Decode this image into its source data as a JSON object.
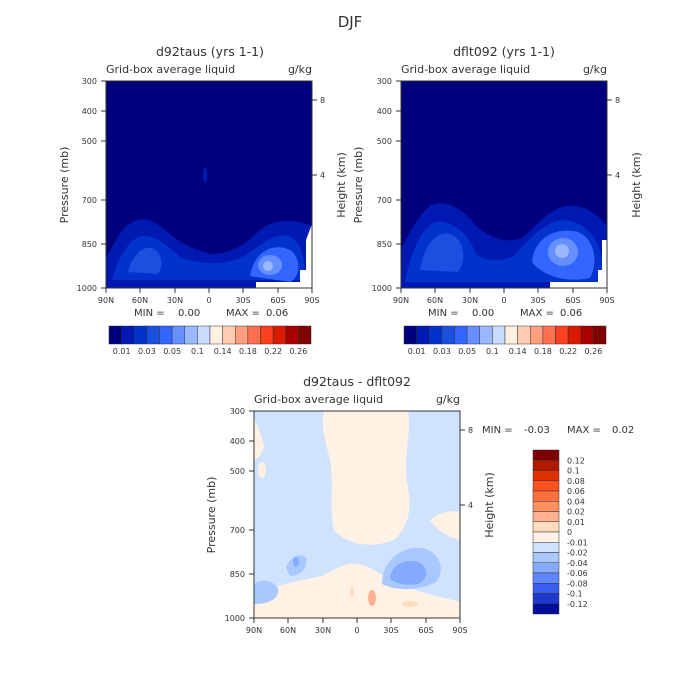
{
  "figure_title": "DJF",
  "chart_data": [
    {
      "type": "heatmap",
      "title": "d92taus (yrs 1-1)",
      "subtitle": "Grid-box average liquid",
      "units": "g/kg",
      "ylabel": "Pressure (mb)",
      "y2label": "Height (km)",
      "x_ticks": [
        "90N",
        "60N",
        "30N",
        "0",
        "30S",
        "60S",
        "90S"
      ],
      "y_ticks": [
        "300",
        "400",
        "500",
        "700",
        "850",
        "1000"
      ],
      "y2_ticks": [
        "8",
        "4"
      ],
      "stats": {
        "min_label": "MIN =",
        "min": "0.00",
        "max_label": "MAX =",
        "max": "0.06"
      },
      "colorbar": {
        "colors": [
          "#00007f",
          "#0019b2",
          "#0033cc",
          "#1a4fe0",
          "#3366ff",
          "#668fff",
          "#99b8ff",
          "#c7dcff",
          "#fff0e0",
          "#ffccb2",
          "#ff9f80",
          "#ff7050",
          "#ff4020",
          "#d91a00",
          "#a80000",
          "#7f0000"
        ],
        "labels": [
          "0.01",
          "0.03",
          "0.05",
          "0.1",
          "0.14",
          "0.18",
          "0.22",
          "0.26"
        ]
      }
    },
    {
      "type": "heatmap",
      "title": "dflt092 (yrs 1-1)",
      "subtitle": "Grid-box average liquid",
      "units": "g/kg",
      "ylabel": "Pressure (mb)",
      "y2label": "Height (km)",
      "x_ticks": [
        "90N",
        "60N",
        "30N",
        "0",
        "30S",
        "60S",
        "90S"
      ],
      "y_ticks": [
        "300",
        "400",
        "500",
        "700",
        "850",
        "1000"
      ],
      "y2_ticks": [
        "8",
        "4"
      ],
      "stats": {
        "min_label": "MIN =",
        "min": "0.00",
        "max_label": "MAX =",
        "max": "0.06"
      },
      "colorbar": {
        "colors": [
          "#00007f",
          "#0019b2",
          "#0033cc",
          "#1a4fe0",
          "#3366ff",
          "#668fff",
          "#99b8ff",
          "#c7dcff",
          "#fff0e0",
          "#ffccb2",
          "#ff9f80",
          "#ff7050",
          "#ff4020",
          "#d91a00",
          "#a80000",
          "#7f0000"
        ],
        "labels": [
          "0.01",
          "0.03",
          "0.05",
          "0.1",
          "0.14",
          "0.18",
          "0.22",
          "0.26"
        ]
      }
    },
    {
      "type": "heatmap",
      "title": "d92taus - dflt092",
      "subtitle": "Grid-box average liquid",
      "units": "g/kg",
      "ylabel": "Pressure (mb)",
      "y2label": "Height (km)",
      "x_ticks": [
        "90N",
        "60N",
        "30N",
        "0",
        "30S",
        "60S",
        "90S"
      ],
      "y_ticks": [
        "300",
        "400",
        "500",
        "700",
        "850",
        "1000"
      ],
      "y2_ticks": [
        "8",
        "4"
      ],
      "stats": {
        "min_label": "MIN =",
        "min": "-0.03",
        "max_label": "MAX =",
        "max": "0.02"
      },
      "colorbar": {
        "colors": [
          "#7f0000",
          "#b01800",
          "#e03000",
          "#ff5020",
          "#ff7040",
          "#ff9060",
          "#ffb090",
          "#ffdcc0",
          "#fff2e4",
          "#cfe3ff",
          "#a8c8ff",
          "#86aaff",
          "#5f86ff",
          "#3a5ef0",
          "#1f39d0",
          "#000d99"
        ],
        "labels": [
          "0.12",
          "0.1",
          "0.08",
          "0.06",
          "0.04",
          "0.02",
          "0.01",
          "0",
          "-0.01",
          "-0.02",
          "-0.04",
          "-0.06",
          "-0.08",
          "-0.1",
          "-0.12"
        ]
      }
    }
  ]
}
